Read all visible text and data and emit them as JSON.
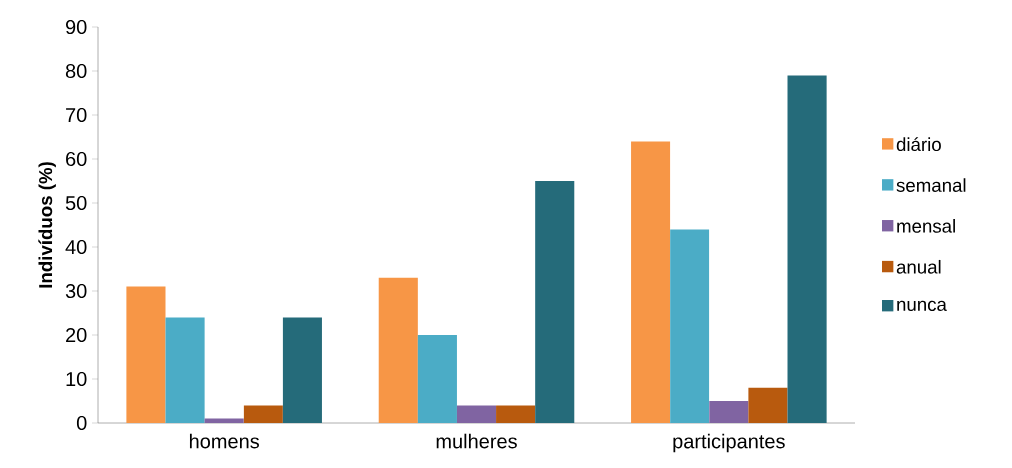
{
  "chart_data": {
    "type": "bar",
    "ylabel": "Indivíduos (%)",
    "categories": [
      "homens",
      "mulheres",
      "participantes"
    ],
    "series": [
      {
        "name": "diário",
        "color": "#f79646",
        "values": [
          31,
          33,
          64
        ]
      },
      {
        "name": "semanal",
        "color": "#4bacc6",
        "values": [
          24,
          20,
          44
        ]
      },
      {
        "name": "mensal",
        "color": "#8064a2",
        "values": [
          1,
          4,
          5
        ]
      },
      {
        "name": "anual",
        "color": "#b85a0e",
        "values": [
          4,
          4,
          8
        ]
      },
      {
        "name": "nunca",
        "color": "#256b7a",
        "values": [
          24,
          55,
          79
        ]
      }
    ],
    "ylim": [
      0,
      90
    ],
    "yticks": [
      0,
      10,
      20,
      30,
      40,
      50,
      60,
      70,
      80,
      90
    ],
    "grid": false,
    "legend": "right"
  }
}
